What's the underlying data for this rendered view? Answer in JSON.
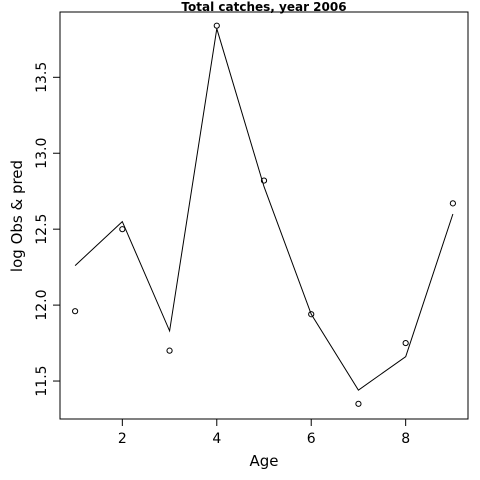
{
  "chart_data": {
    "type": "line",
    "title": "Total catches, year 2006",
    "xlabel": "Age",
    "ylabel": "log Obs & pred",
    "xlim": [
      0.68,
      9.32
    ],
    "ylim": [
      11.25,
      13.93
    ],
    "x_ticks": [
      2,
      4,
      6,
      8
    ],
    "x_tick_labels": [
      "2",
      "4",
      "6",
      "8"
    ],
    "y_ticks": [
      11.5,
      12.0,
      12.5,
      13.0,
      13.5
    ],
    "y_tick_labels": [
      "11.5",
      "12.0",
      "12.5",
      "13.0",
      "13.5"
    ],
    "grid": false,
    "legend": "none",
    "series": [
      {
        "role": "observed",
        "style": "points",
        "marker": "open-circle",
        "color": "#000000",
        "x": [
          1,
          2,
          3,
          4,
          5,
          6,
          7,
          8,
          9
        ],
        "y": [
          11.96,
          12.5,
          11.7,
          13.84,
          12.82,
          11.94,
          11.35,
          11.75,
          12.67
        ]
      },
      {
        "role": "predicted",
        "style": "line",
        "color": "#000000",
        "x": [
          1,
          2,
          3,
          4,
          5,
          6,
          7,
          8,
          9
        ],
        "y": [
          12.26,
          12.55,
          11.83,
          13.82,
          12.78,
          11.94,
          11.44,
          11.66,
          12.6
        ]
      }
    ]
  }
}
